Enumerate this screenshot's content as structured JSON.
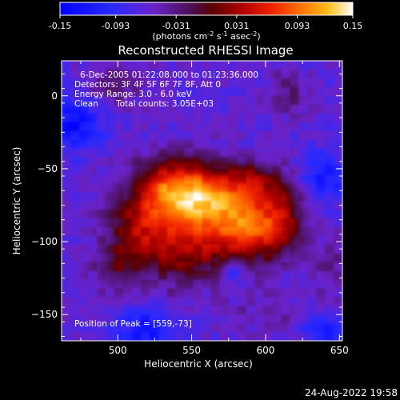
{
  "chart_data": {
    "type": "heatmap",
    "title": "Reconstructed RHESSI Image",
    "xlabel": "Heliocentric X (arcsec)",
    "ylabel": "Heliocentric Y (arcsec)",
    "xlim": [
      462,
      652
    ],
    "ylim": [
      -168,
      24
    ],
    "x_ticks": [
      500,
      550,
      600,
      650
    ],
    "y_ticks": [
      0,
      -50,
      -100,
      -150
    ],
    "colorbar": {
      "range": [
        -0.15,
        0.15
      ],
      "ticks": [
        "-0.15",
        "-0.093",
        "-0.031",
        "0.031",
        "0.093",
        "0.15"
      ],
      "unit_main": "(photons cm",
      "unit_exp1": "-2",
      "unit_mid1": " s",
      "unit_exp2": "-1",
      "unit_mid2": " asec",
      "unit_exp3": "-2",
      "unit_end": ")"
    },
    "info": {
      "line1": "6-Dec-2005 01:22:08.000 to 01:23:36.000",
      "line2": "Detectors: 3F 4F 5F 6F 7F 8F, Att 0",
      "line3": "Energy Range: 3.0 - 6.0 keV",
      "line4_label": "Clean",
      "line4_counts": "Total counts: 3.05E+03"
    },
    "peak_label": "Position of Peak = [559,-73]",
    "peak": [
      559,
      -73
    ],
    "sources": [
      {
        "x": 559,
        "y": -73,
        "sx": 22,
        "sy": 16,
        "amp": 0.15
      },
      {
        "x": 535,
        "y": -62,
        "sx": 18,
        "sy": 14,
        "amp": 0.1
      },
      {
        "x": 590,
        "y": -92,
        "sx": 18,
        "sy": 16,
        "amp": 0.12
      },
      {
        "x": 515,
        "y": -90,
        "sx": 16,
        "sy": 16,
        "amp": 0.08
      },
      {
        "x": 545,
        "y": -108,
        "sx": 20,
        "sy": 14,
        "amp": 0.08
      },
      {
        "x": 612,
        "y": -80,
        "sx": 10,
        "sy": 16,
        "amp": 0.06
      },
      {
        "x": 592,
        "y": -58,
        "sx": 14,
        "sy": 10,
        "amp": 0.06
      },
      {
        "x": 500,
        "y": -118,
        "sx": 12,
        "sy": 12,
        "amp": 0.05
      },
      {
        "x": 500,
        "y": 8,
        "sx": 14,
        "sy": 10,
        "amp": 0.035
      },
      {
        "x": 615,
        "y": 2,
        "sx": 10,
        "sy": 12,
        "amp": 0.035
      },
      {
        "x": 600,
        "y": -150,
        "sx": 20,
        "sy": 10,
        "amp": 0.02
      },
      {
        "x": 645,
        "y": -120,
        "sx": 10,
        "sy": 14,
        "amp": 0.03
      },
      {
        "x": 525,
        "y": -140,
        "sx": 18,
        "sy": 8,
        "amp": 0.02
      }
    ],
    "baseline": -0.065,
    "sink_points": [
      {
        "x": 470,
        "y": -20,
        "s": 12,
        "amp": -0.07
      },
      {
        "x": 520,
        "y": -160,
        "s": 14,
        "amp": -0.06
      },
      {
        "x": 640,
        "y": -55,
        "s": 12,
        "amp": -0.05
      },
      {
        "x": 578,
        "y": -120,
        "s": 5,
        "amp": -0.06
      },
      {
        "x": 640,
        "y": -162,
        "s": 10,
        "amp": -0.05
      }
    ],
    "grid": false
  },
  "footer": {
    "date": "24-Aug-2022 19:58"
  }
}
